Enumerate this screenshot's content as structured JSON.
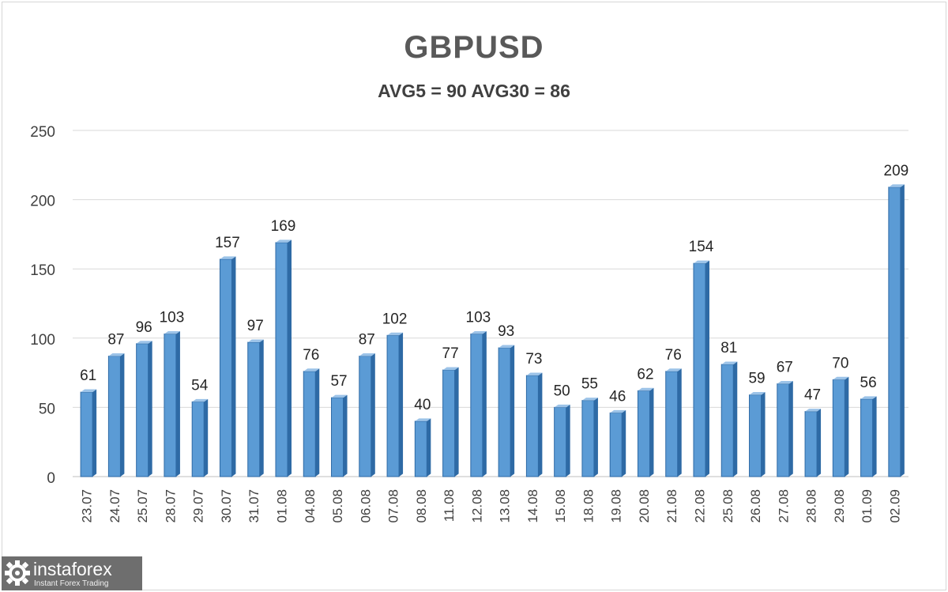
{
  "chart_data": {
    "type": "bar",
    "title": "GBPUSD",
    "subtitle": "AVG5 = 90 AVG30 = 86",
    "categories": [
      "23.07",
      "24.07",
      "25.07",
      "28.07",
      "29.07",
      "30.07",
      "31.07",
      "01.08",
      "04.08",
      "05.08",
      "06.08",
      "07.08",
      "08.08",
      "11.08",
      "12.08",
      "13.08",
      "14.08",
      "15.08",
      "18.08",
      "19.08",
      "20.08",
      "21.08",
      "22.08",
      "25.08",
      "26.08",
      "27.08",
      "28.08",
      "29.08",
      "01.09",
      "02.09"
    ],
    "values": [
      61,
      87,
      96,
      103,
      54,
      157,
      97,
      169,
      76,
      57,
      87,
      102,
      40,
      77,
      103,
      93,
      73,
      50,
      55,
      46,
      62,
      76,
      154,
      81,
      59,
      67,
      47,
      70,
      56,
      209
    ],
    "ylim": [
      0,
      250
    ],
    "yticks": [
      0,
      50,
      100,
      150,
      200,
      250
    ],
    "grid": true,
    "bar_color": "#5b9bd5",
    "bar_dark_color": "#2e6aa5",
    "data_labels": true
  },
  "logo": {
    "name": "instaforex",
    "tagline": "Instant Forex Trading"
  }
}
